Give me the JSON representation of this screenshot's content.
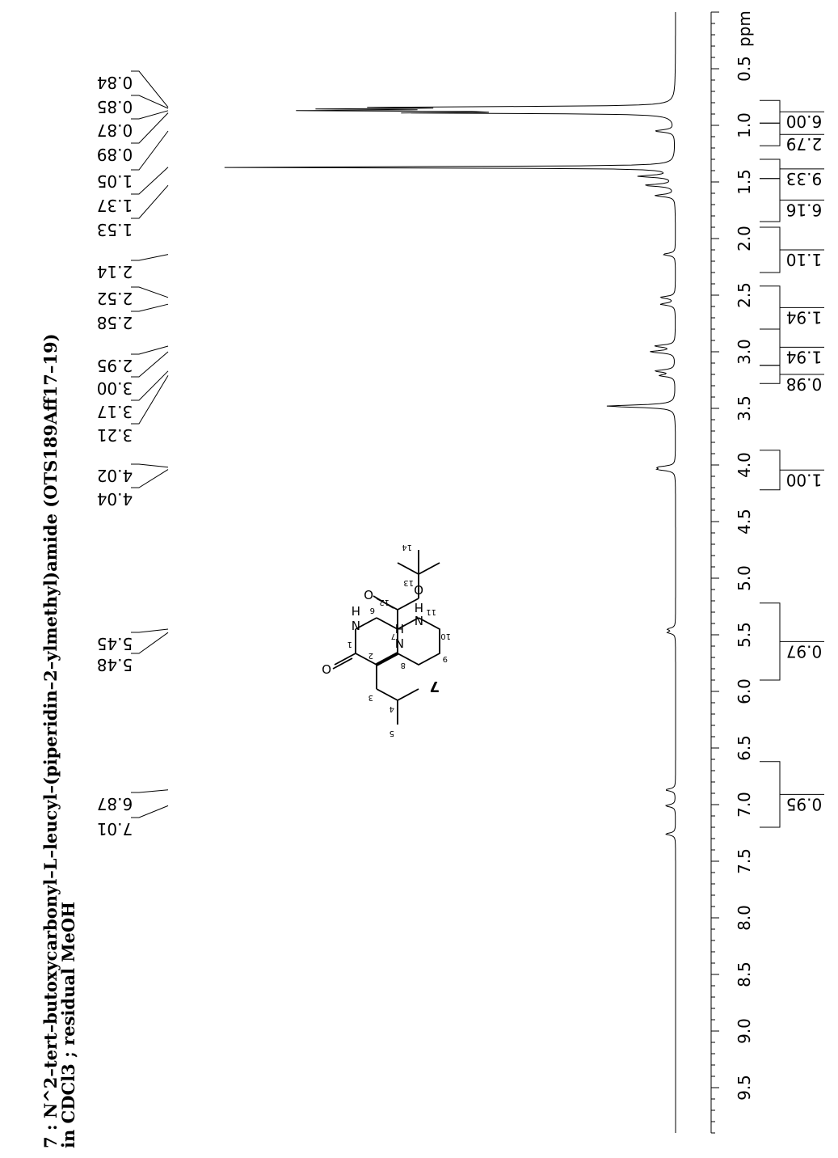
{
  "chart_data": {
    "type": "line",
    "title_lines": [
      "7 : N^2–tert–butoxycarbonyl–L–leucyl–(piperidin–2–ylmethyl)amide (OTS189Aff17–19)",
      "in CDCl3 ; residual MeOH"
    ],
    "x_axis": {
      "unit": "ppm",
      "ticks": [
        "0.5",
        "1.0",
        "1.5",
        "2.0",
        "2.5",
        "3.0",
        "3.5",
        "4.0",
        "4.5",
        "5.0",
        "5.5",
        "6.0",
        "6.5",
        "7.0",
        "7.5",
        "8.0",
        "8.5",
        "9.0",
        "9.5"
      ],
      "range": [
        0.0,
        9.9
      ]
    },
    "peak_labels": [
      "0.84",
      "0.85",
      "0.87",
      "0.89",
      "1.05",
      "1.37",
      "1.53",
      "2.14",
      "2.52",
      "2.58",
      "2.95",
      "3.00",
      "3.17",
      "3.21",
      "4.02",
      "4.04",
      "5.45",
      "5.48",
      "6.87",
      "7.01"
    ],
    "integrals": [
      {
        "value": "6.00",
        "from": 0.78,
        "to": 0.98
      },
      {
        "value": "2.79",
        "from": 0.98,
        "to": 1.18
      },
      {
        "value": "9.33",
        "from": 1.3,
        "to": 1.47
      },
      {
        "value": "6.16",
        "from": 1.47,
        "to": 1.85
      },
      {
        "value": "1.10",
        "from": 1.9,
        "to": 2.3
      },
      {
        "value": "1.94",
        "from": 2.42,
        "to": 2.8
      },
      {
        "value": "1.94",
        "from": 2.8,
        "to": 3.12
      },
      {
        "value": "0.98",
        "from": 3.12,
        "to": 3.28
      },
      {
        "value": "1.00",
        "from": 3.87,
        "to": 4.22
      },
      {
        "value": "0.97",
        "from": 5.22,
        "to": 5.9
      },
      {
        "value": "0.95",
        "from": 6.62,
        "to": 7.2
      }
    ],
    "spectrum_peaks": [
      {
        "ppm": 0.84,
        "height": 0.53
      },
      {
        "ppm": 0.855,
        "height": 0.56
      },
      {
        "ppm": 0.87,
        "height": 0.63
      },
      {
        "ppm": 0.89,
        "height": 0.5
      },
      {
        "ppm": 1.05,
        "height": 0.04
      },
      {
        "ppm": 1.37,
        "height": 1.0
      },
      {
        "ppm": 1.45,
        "height": 0.07
      },
      {
        "ppm": 1.53,
        "height": 0.06
      },
      {
        "ppm": 1.62,
        "height": 0.04
      },
      {
        "ppm": 2.14,
        "height": 0.025
      },
      {
        "ppm": 2.52,
        "height": 0.03
      },
      {
        "ppm": 2.58,
        "height": 0.03
      },
      {
        "ppm": 2.95,
        "height": 0.04
      },
      {
        "ppm": 3.0,
        "height": 0.05
      },
      {
        "ppm": 3.17,
        "height": 0.04
      },
      {
        "ppm": 3.21,
        "height": 0.03
      },
      {
        "ppm": 3.48,
        "height": 0.14
      },
      {
        "ppm": 4.02,
        "height": 0.03
      },
      {
        "ppm": 4.04,
        "height": 0.03
      },
      {
        "ppm": 5.45,
        "height": 0.015
      },
      {
        "ppm": 5.48,
        "height": 0.015
      },
      {
        "ppm": 6.87,
        "height": 0.02
      },
      {
        "ppm": 7.01,
        "height": 0.02
      },
      {
        "ppm": 7.26,
        "height": 0.02
      }
    ]
  },
  "structure": {
    "compound_number": "7",
    "atom_labels": [
      "1",
      "2",
      "3",
      "4",
      "5",
      "6",
      "7",
      "8",
      "9",
      "10",
      "11",
      "12",
      "13",
      "14"
    ],
    "heteroatoms": [
      "O",
      "N",
      "H",
      "N",
      "H",
      "O",
      "O",
      "N",
      "H"
    ]
  }
}
